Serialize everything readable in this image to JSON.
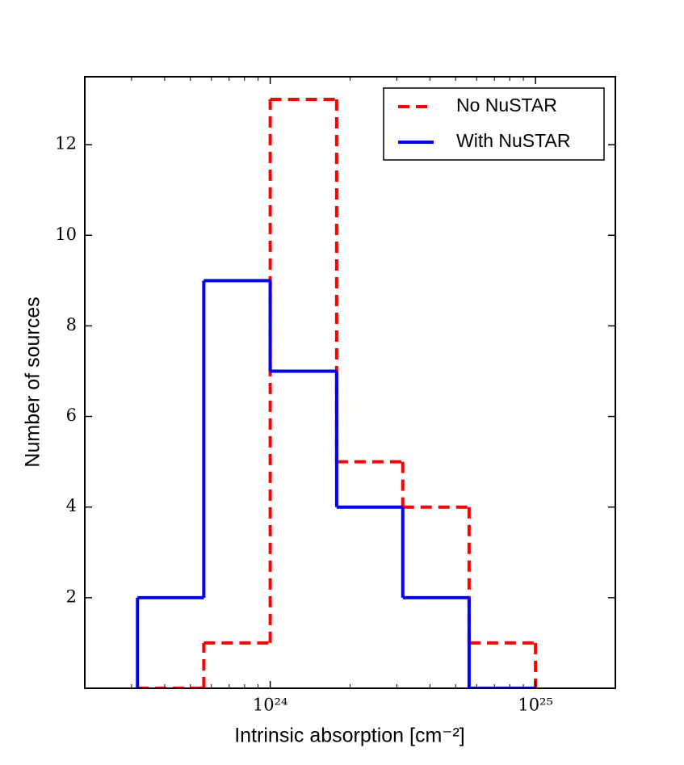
{
  "chart_data": {
    "type": "histogram",
    "xlabel": "Intrinsic absorption [cm⁻²]",
    "ylabel": "Number of sources",
    "bins": [
      3.16e+23,
      5.62e+23,
      1e+24,
      1.78e+24,
      3.16e+24,
      5.62e+24,
      1e+25
    ],
    "series": [
      {
        "name": "No NuSTAR",
        "color": "#ff0000",
        "linestyle": "dashed",
        "values": [
          0,
          1,
          13,
          5,
          4,
          1
        ]
      },
      {
        "name": "With NuSTAR",
        "color": "#0000ff",
        "linestyle": "solid",
        "values": [
          2,
          9,
          7,
          4,
          2,
          0
        ]
      }
    ],
    "xscale": "log",
    "xlim": [
      2e+23,
      2e+25
    ],
    "xticks": [
      {
        "value": 1e+24,
        "label": "10²⁴"
      },
      {
        "value": 1e+25,
        "label": "10²⁵"
      }
    ],
    "xminorticks": [
      2e+23,
      3e+23,
      4e+23,
      5e+23,
      6e+23,
      7e+23,
      8e+23,
      9e+23,
      2e+24,
      3e+24,
      4e+24,
      5e+24,
      6e+24,
      7e+24,
      8e+24,
      9e+24,
      2e+25
    ],
    "ylim": [
      0,
      13.5
    ],
    "yticks": [
      2,
      4,
      6,
      8,
      10,
      12
    ],
    "legend": "upper right"
  }
}
